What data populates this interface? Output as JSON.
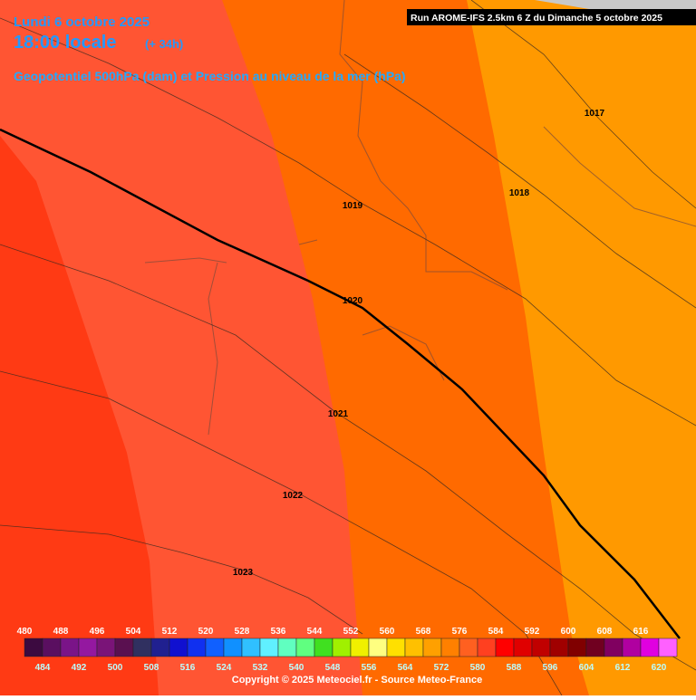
{
  "header": {
    "date": "Lundi 6 octobre 2025",
    "time": "18:00 locale",
    "lead": "(+ 34h)",
    "field": "Geopotentiel 500hPa (dam) et Pression au niveau de la mer (hPa)",
    "run": "Run AROME-IFS 2.5km 6 Z du Dimanche 5 octobre 2025"
  },
  "isobar_labels": [
    "1017",
    "1018",
    "1019",
    "1020",
    "1021",
    "1022",
    "1023"
  ],
  "legend": {
    "levels": [
      480,
      484,
      488,
      492,
      496,
      500,
      504,
      508,
      512,
      516,
      520,
      524,
      528,
      532,
      536,
      540,
      544,
      548,
      552,
      556,
      560,
      564,
      568,
      572,
      576,
      580,
      584,
      588,
      592,
      596,
      600,
      604,
      608,
      612,
      616,
      620
    ],
    "colors": [
      "#3c0a40",
      "#5a0f60",
      "#7a1488",
      "#9418a0",
      "#7a1478",
      "#5a1050",
      "#303060",
      "#202090",
      "#1010d0",
      "#1030f0",
      "#1060ff",
      "#1090ff",
      "#30c0ff",
      "#60f0ff",
      "#60ffc0",
      "#60ff80",
      "#40e020",
      "#a0f000",
      "#f0f000",
      "#ffff80",
      "#ffe000",
      "#ffc000",
      "#ffa000",
      "#ff8000",
      "#ff6020",
      "#ff4020",
      "#ff0000",
      "#e00000",
      "#c00000",
      "#a00000",
      "#800000",
      "#700020",
      "#800060",
      "#b000a0",
      "#e000e0",
      "#ff60ff"
    ]
  },
  "footer": "Copyright © 2025 Meteociel.fr - Source Meteo-France"
}
